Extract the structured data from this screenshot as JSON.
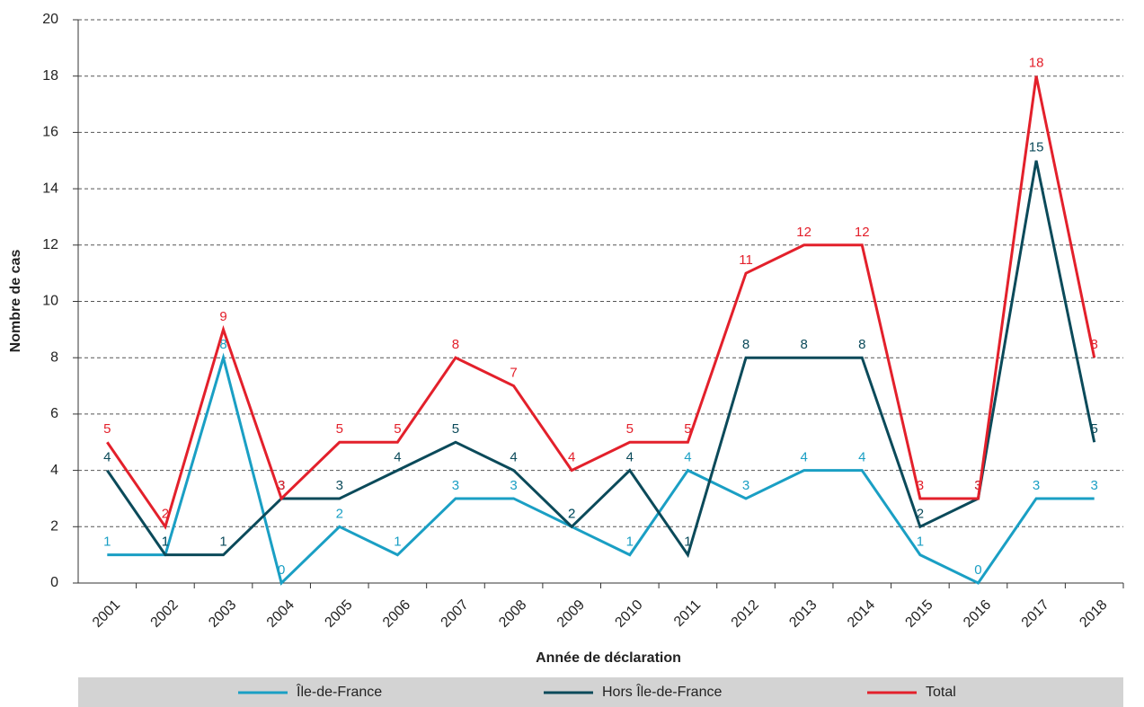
{
  "chart_data": {
    "type": "line",
    "x_label": "Année de déclaration",
    "y_label": "Nombre de cas",
    "categories": [
      "2001",
      "2002",
      "2003",
      "2004",
      "2005",
      "2006",
      "2007",
      "2008",
      "2009",
      "2010",
      "2011",
      "2012",
      "2013",
      "2014",
      "2015",
      "2016",
      "2017",
      "2018"
    ],
    "series": [
      {
        "name": "Île-de-France",
        "color": "#1a9fc4",
        "values": [
          1,
          1,
          8,
          0,
          2,
          1,
          3,
          3,
          2,
          1,
          4,
          3,
          4,
          4,
          1,
          0,
          3,
          3
        ]
      },
      {
        "name": "Hors Île-de-France",
        "color": "#0b4a5a",
        "values": [
          4,
          1,
          1,
          3,
          3,
          4,
          5,
          4,
          2,
          4,
          1,
          8,
          8,
          8,
          2,
          3,
          15,
          5
        ]
      },
      {
        "name": "Total",
        "color": "#e3202b",
        "values": [
          5,
          2,
          9,
          3,
          5,
          5,
          8,
          7,
          4,
          5,
          5,
          11,
          12,
          12,
          3,
          3,
          18,
          8
        ]
      }
    ],
    "ylim": [
      0,
      20
    ],
    "yticks": [
      0,
      2,
      4,
      6,
      8,
      10,
      12,
      14,
      16,
      18,
      20
    ],
    "grid": true,
    "legend": "bottom"
  }
}
